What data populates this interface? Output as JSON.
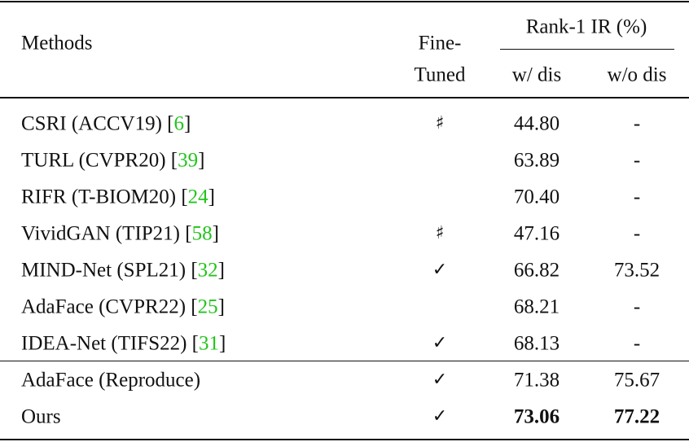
{
  "header": {
    "methods": "Methods",
    "fine_tuned": [
      "Fine-",
      "Tuned"
    ],
    "group": "Rank-1 IR (%)",
    "columns": [
      "w/ dis",
      "w/o dis"
    ]
  },
  "table": {
    "rows": [
      {
        "method": [
          "CSRI (ACCV19) [",
          "6",
          "]"
        ],
        "fine_tuned": "♯",
        "values": [
          "44.80",
          "-"
        ]
      },
      {
        "method": [
          "TURL (CVPR20) [",
          "39",
          "]"
        ],
        "fine_tuned": null,
        "values": [
          "63.89",
          "-"
        ]
      },
      {
        "method": [
          "RIFR (T-BIOM20) [",
          "24",
          "]"
        ],
        "fine_tuned": null,
        "values": [
          "70.40",
          "-"
        ]
      },
      {
        "method": [
          "VividGAN (TIP21) [",
          "58",
          "]"
        ],
        "fine_tuned": "♯",
        "values": [
          "47.16",
          "-"
        ]
      },
      {
        "method": [
          "MIND-Net (SPL21) [",
          "32",
          "]"
        ],
        "fine_tuned": "✓",
        "values": [
          "66.82",
          "73.52"
        ]
      },
      {
        "method": [
          "AdaFace (CVPR22) [",
          "25",
          "]"
        ],
        "fine_tuned": null,
        "values": [
          "68.21",
          "-"
        ]
      },
      {
        "method": [
          "IDEA-Net (TIFS22) [",
          "31",
          "]"
        ],
        "fine_tuned": "✓",
        "values": [
          "68.13",
          "-"
        ]
      },
      {
        "method": [
          "AdaFace (Reproduce)"
        ],
        "fine_tuned": "✓",
        "values": [
          "71.38",
          "75.67"
        ]
      },
      {
        "method": [
          "Ours"
        ],
        "fine_tuned": "✓",
        "values": [
          "73.06",
          "77.22"
        ],
        "bold": true
      }
    ]
  }
}
